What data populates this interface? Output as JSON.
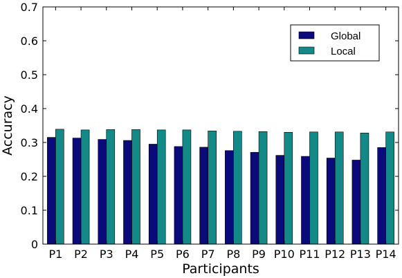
{
  "chart_data": {
    "type": "bar",
    "categories": [
      "P1",
      "P2",
      "P3",
      "P4",
      "P5",
      "P6",
      "P7",
      "P8",
      "P9",
      "P10",
      "P11",
      "P12",
      "P13",
      "P14"
    ],
    "series": [
      {
        "name": "Global",
        "color": "#0a0a7a",
        "values": [
          0.315,
          0.313,
          0.309,
          0.306,
          0.295,
          0.288,
          0.286,
          0.276,
          0.271,
          0.262,
          0.259,
          0.254,
          0.248,
          0.285
        ]
      },
      {
        "name": "Local",
        "color": "#138a87",
        "values": [
          0.339,
          0.337,
          0.338,
          0.338,
          0.337,
          0.337,
          0.334,
          0.333,
          0.332,
          0.33,
          0.331,
          0.331,
          0.328,
          0.331
        ]
      }
    ],
    "xlabel": "Participants",
    "ylabel": "Accuracy",
    "ylim": [
      0,
      0.7
    ],
    "yticks": [
      "0",
      "0.1",
      "0.2",
      "0.3",
      "0.4",
      "0.5",
      "0.6",
      "0.7"
    ],
    "grid": false,
    "legend_position": "top-right"
  }
}
